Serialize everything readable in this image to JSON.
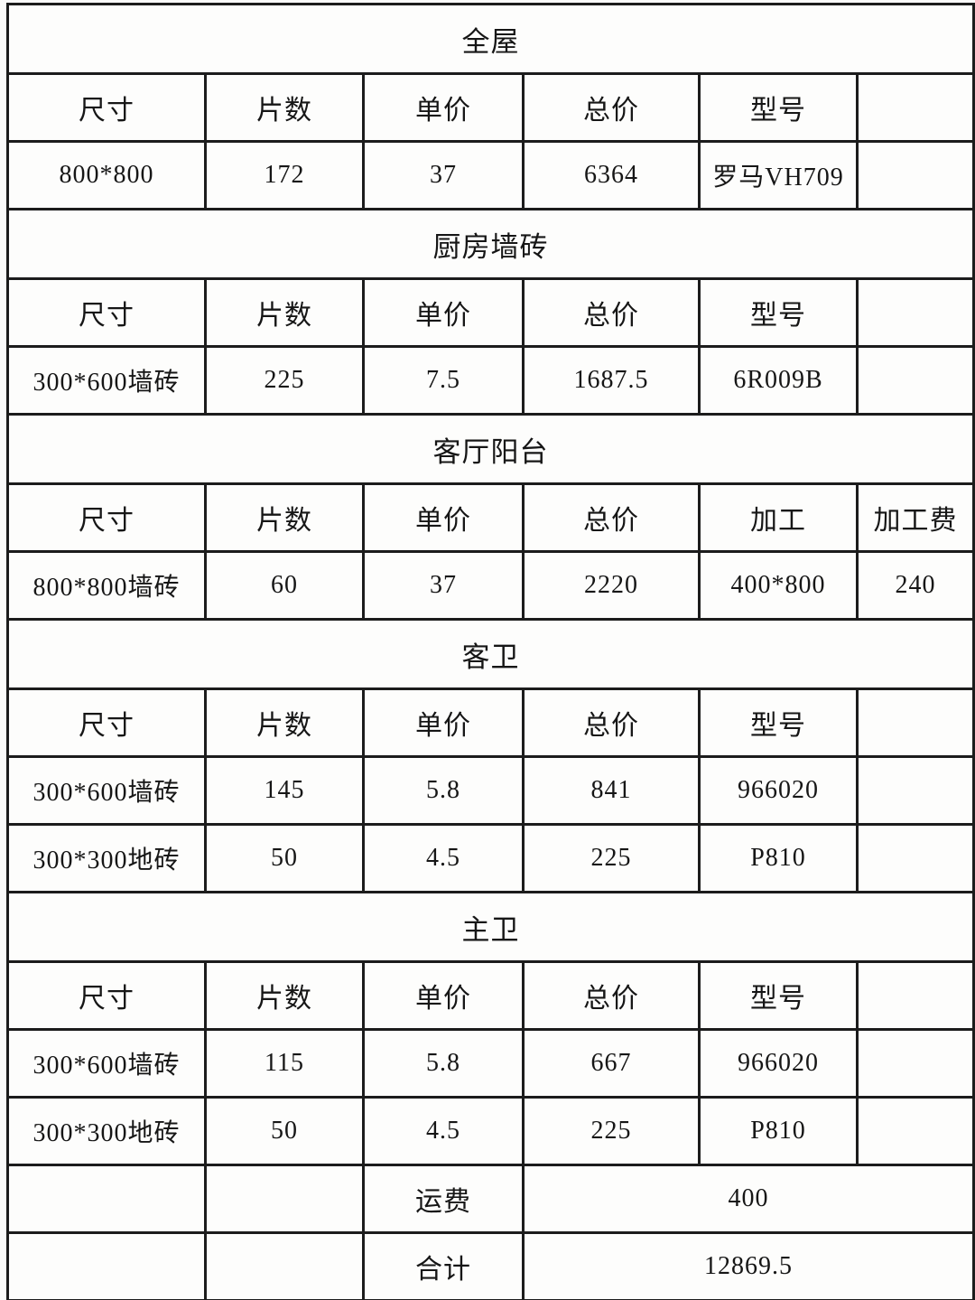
{
  "colors": {
    "border": "#1c1c1c",
    "text": "#161616",
    "background": "#fbfbfa"
  },
  "table": {
    "sections": [
      {
        "title": "全屋",
        "headers": [
          "尺寸",
          "片数",
          "单价",
          "总价",
          "型号",
          ""
        ],
        "rows": [
          [
            "800*800",
            "172",
            "37",
            "6364",
            "罗马VH709",
            ""
          ]
        ]
      },
      {
        "title": "厨房墙砖",
        "headers": [
          "尺寸",
          "片数",
          "单价",
          "总价",
          "型号",
          ""
        ],
        "rows": [
          [
            "300*600墙砖",
            "225",
            "7.5",
            "1687.5",
            "6R009B",
            ""
          ]
        ]
      },
      {
        "title": "客厅阳台",
        "headers": [
          "尺寸",
          "片数",
          "单价",
          "总价",
          "加工",
          "加工费"
        ],
        "rows": [
          [
            "800*800墙砖",
            "60",
            "37",
            "2220",
            "400*800",
            "240"
          ]
        ]
      },
      {
        "title": "客卫",
        "headers": [
          "尺寸",
          "片数",
          "单价",
          "总价",
          "型号",
          ""
        ],
        "rows": [
          [
            "300*600墙砖",
            "145",
            "5.8",
            "841",
            "966020",
            ""
          ],
          [
            "300*300地砖",
            "50",
            "4.5",
            "225",
            "P810",
            ""
          ]
        ]
      },
      {
        "title": "主卫",
        "headers": [
          "尺寸",
          "片数",
          "单价",
          "总价",
          "型号",
          ""
        ],
        "rows": [
          [
            "300*600墙砖",
            "115",
            "5.8",
            "667",
            "966020",
            ""
          ],
          [
            "300*300地砖",
            "50",
            "4.5",
            "225",
            "P810",
            ""
          ]
        ]
      }
    ],
    "footer_rows": [
      {
        "label": "运费",
        "value": "400"
      },
      {
        "label": "合计",
        "value": "12869.5"
      }
    ]
  }
}
